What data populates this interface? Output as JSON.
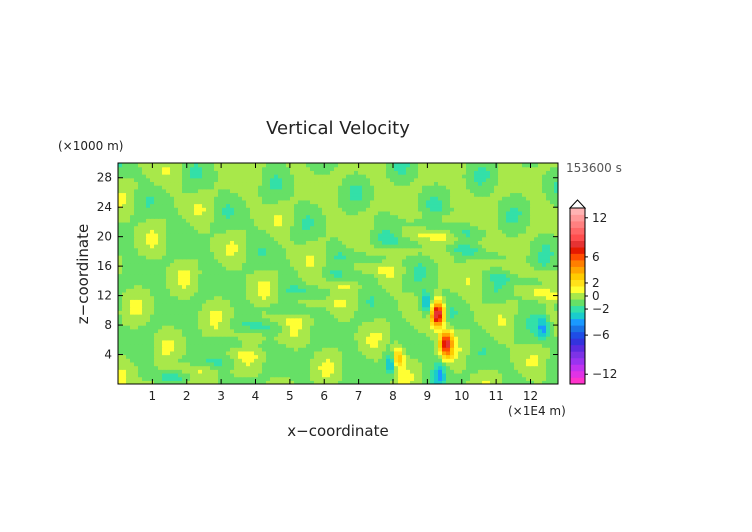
{
  "chart_data": {
    "type": "heatmap",
    "title": "Vertical Velocity",
    "xlabel": "x−coordinate",
    "ylabel": "z−coordinate",
    "x_unit_label": "(×1E4 m)",
    "y_unit_label": "(×1000 m)",
    "time_label": "153600 s",
    "xlim": [
      0,
      12.8
    ],
    "ylim": [
      0,
      30
    ],
    "x_ticks": [
      1,
      2,
      3,
      4,
      5,
      6,
      7,
      8,
      9,
      10,
      11,
      12
    ],
    "y_ticks": [
      4,
      8,
      12,
      16,
      20,
      24,
      28
    ],
    "grid": false,
    "background_level_color": "#a8e84a",
    "colorbar": {
      "position": "right",
      "levels": [
        -13,
        -12,
        -11,
        -10,
        -9,
        -8,
        -7,
        -6,
        -5,
        -4,
        -3,
        -2,
        -1,
        0,
        1,
        2,
        3,
        4,
        5,
        6,
        7,
        8,
        9,
        10,
        11,
        12,
        13,
        14
      ],
      "colors": [
        "#ff33cc",
        "#e033e6",
        "#c033f0",
        "#9a33f0",
        "#7d33e6",
        "#5b2be0",
        "#3333dd",
        "#1f4de6",
        "#1a73e6",
        "#1a99ff",
        "#1acccc",
        "#33e0a8",
        "#66e066",
        "#a8e84a",
        "#ffff33",
        "#ffe11a",
        "#ffcc00",
        "#ffa600",
        "#ff7f00",
        "#ff4d00",
        "#e61a00",
        "#e63333",
        "#ff4d4d",
        "#ff6666",
        "#ff8080",
        "#ff9999",
        "#ffb3b3"
      ],
      "tick_values": [
        12,
        6,
        2,
        0,
        -2,
        -6,
        -12
      ],
      "tick_labels": [
        "12",
        "6",
        "2",
        "0",
        "−2",
        "−6",
        "−12"
      ],
      "overflow_arrow": "top"
    },
    "features": [
      {
        "type": "positive_core",
        "x": 9.3,
        "z": 9.5,
        "value": 10
      },
      {
        "type": "positive_core",
        "x": 9.55,
        "z": 5.5,
        "value": 8
      },
      {
        "type": "positive_core",
        "x": 8.1,
        "z": 3.5,
        "value": 7
      },
      {
        "type": "negative_core",
        "x": 8.95,
        "z": 11,
        "value": -4
      },
      {
        "type": "negative_core",
        "x": 8.0,
        "z": 3.0,
        "value": -6
      },
      {
        "type": "negative_core",
        "x": 9.35,
        "z": 1.2,
        "value": -3
      },
      {
        "type": "negative_core",
        "x": 12.35,
        "z": 7.6,
        "value": -3
      }
    ]
  }
}
